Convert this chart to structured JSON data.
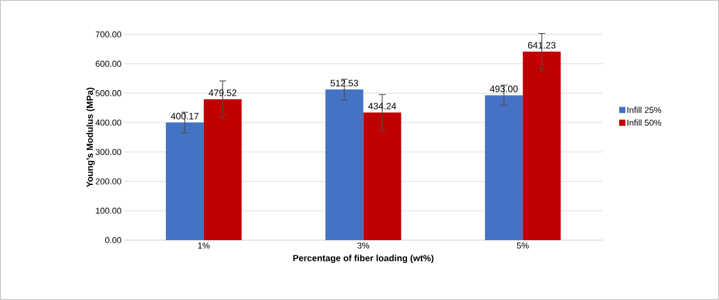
{
  "chart_data": {
    "type": "bar",
    "xlabel": "Percentage of fiber loading (wt%)",
    "ylabel": "Young’s Modulus (MPa)",
    "categories": [
      "1%",
      "3%",
      "5%"
    ],
    "series": [
      {
        "name": "Infill 25%",
        "color": "#4472c4",
        "values": [
          400.17,
          512.53,
          493.0
        ],
        "value_labels": [
          "400.17",
          "512.53",
          "493.00"
        ],
        "errors": [
          35,
          35,
          34
        ]
      },
      {
        "name": "Infill 50%",
        "color": "#c00000",
        "values": [
          479.52,
          434.24,
          641.23
        ],
        "value_labels": [
          "479.52",
          "434.24",
          "641.23"
        ],
        "errors": [
          62,
          61,
          62
        ]
      }
    ],
    "ylim": [
      0,
      700
    ],
    "yticks": [
      {
        "value": 0,
        "label": "0.00"
      },
      {
        "value": 100,
        "label": "100.00"
      },
      {
        "value": 200,
        "label": "200.00"
      },
      {
        "value": 300,
        "label": "300.00"
      },
      {
        "value": 400,
        "label": "400.00"
      },
      {
        "value": 500,
        "label": "500.00"
      },
      {
        "value": 600,
        "label": "600.00"
      },
      {
        "value": 700,
        "label": "700.00"
      }
    ],
    "grid": "y",
    "legend": "right"
  }
}
